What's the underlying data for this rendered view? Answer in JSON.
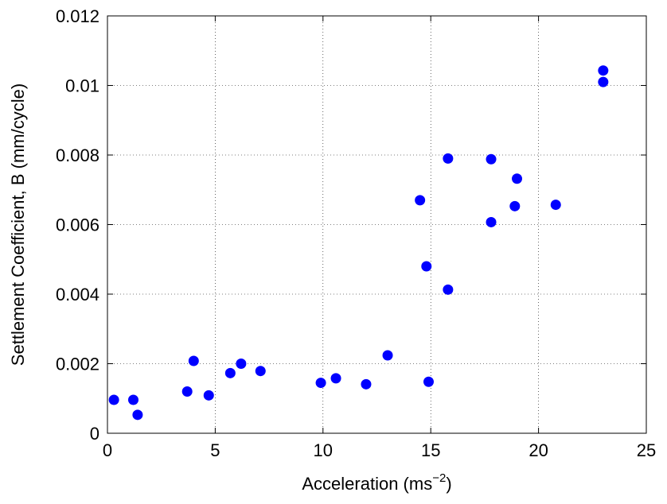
{
  "chart_data": {
    "type": "scatter",
    "xlabel": "Acceleration (ms",
    "xlabel_sup": "−2",
    "xlabel_close": ")",
    "ylabel": "Settlement Coefficient, B (mm/cycle)",
    "xlim": [
      0,
      25
    ],
    "ylim": [
      0,
      0.012
    ],
    "grid": true,
    "x_ticks": [
      0,
      5,
      10,
      15,
      20,
      25
    ],
    "x_tick_labels": [
      "0",
      "5",
      "10",
      "15",
      "20",
      "25"
    ],
    "y_ticks": [
      0,
      0.002,
      0.004,
      0.006,
      0.008,
      0.01,
      0.012
    ],
    "y_tick_labels": [
      "0",
      "0.002",
      "0.004",
      "0.006",
      "0.008",
      "0.01",
      "0.012"
    ],
    "marker_color": "#0000ff",
    "points": [
      {
        "x": 0.3,
        "y": 0.00096
      },
      {
        "x": 1.2,
        "y": 0.00096
      },
      {
        "x": 1.4,
        "y": 0.00053
      },
      {
        "x": 3.7,
        "y": 0.0012
      },
      {
        "x": 4.0,
        "y": 0.00208
      },
      {
        "x": 4.7,
        "y": 0.00109
      },
      {
        "x": 5.7,
        "y": 0.00173
      },
      {
        "x": 6.2,
        "y": 0.002
      },
      {
        "x": 7.1,
        "y": 0.00179
      },
      {
        "x": 9.9,
        "y": 0.00145
      },
      {
        "x": 10.6,
        "y": 0.00158
      },
      {
        "x": 12.0,
        "y": 0.00141
      },
      {
        "x": 13.0,
        "y": 0.00224
      },
      {
        "x": 14.5,
        "y": 0.0067
      },
      {
        "x": 14.8,
        "y": 0.0048
      },
      {
        "x": 14.9,
        "y": 0.00148
      },
      {
        "x": 15.8,
        "y": 0.0079
      },
      {
        "x": 15.8,
        "y": 0.00413
      },
      {
        "x": 17.8,
        "y": 0.00788
      },
      {
        "x": 17.8,
        "y": 0.00607
      },
      {
        "x": 18.9,
        "y": 0.00653
      },
      {
        "x": 19.0,
        "y": 0.00732
      },
      {
        "x": 20.8,
        "y": 0.00657
      },
      {
        "x": 23.0,
        "y": 0.01043
      },
      {
        "x": 23.0,
        "y": 0.0101
      }
    ]
  }
}
